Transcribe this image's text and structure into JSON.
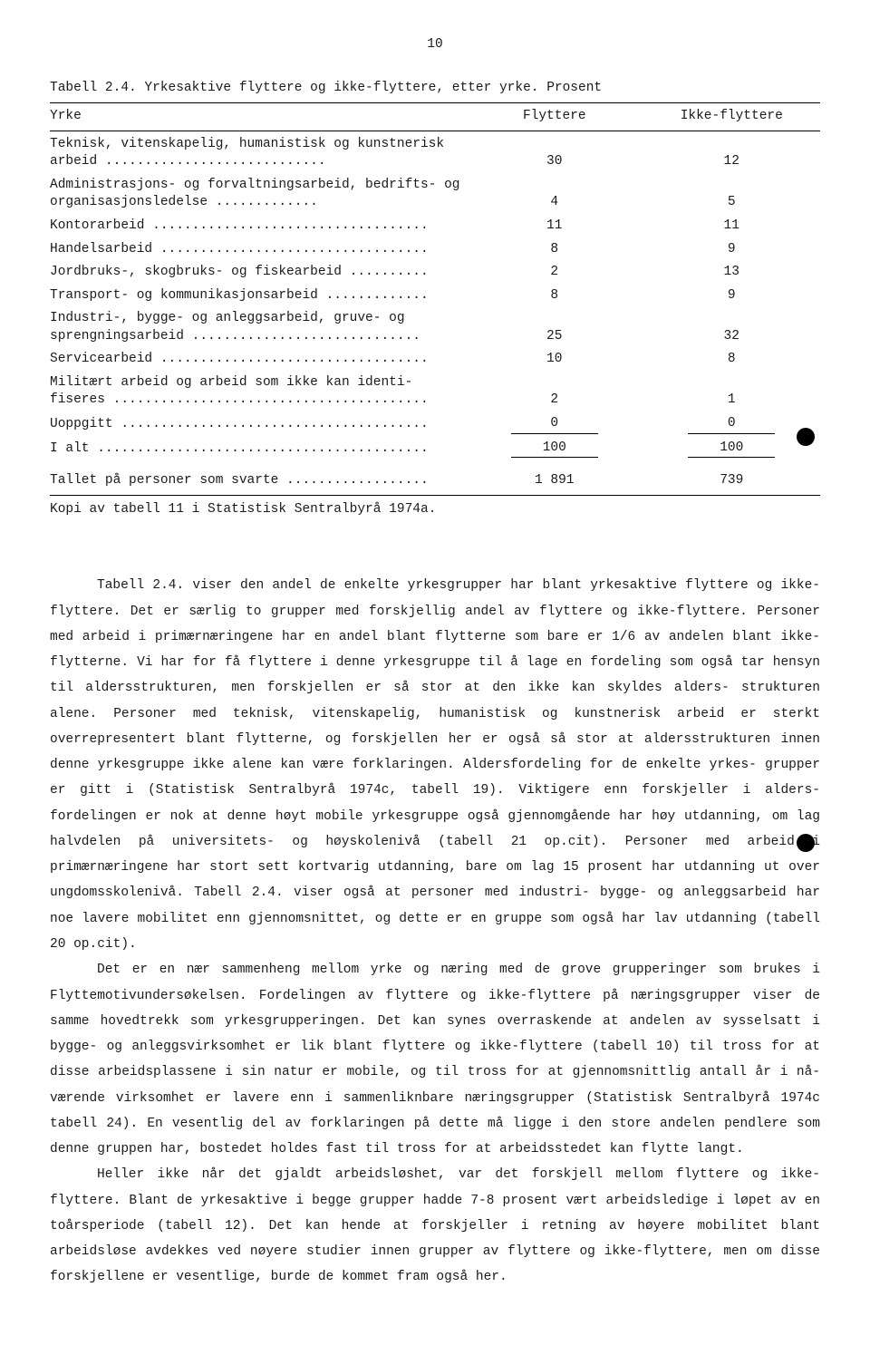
{
  "page_number": "10",
  "table": {
    "title": "Tabell 2.4.  Yrkesaktive flyttere og ikke-flyttere, etter yrke.  Prosent",
    "head_yrke": "Yrke",
    "head_flyttere": "Flyttere",
    "head_ikke": "Ikke-flyttere",
    "rows": [
      {
        "label": "Teknisk, vitenskapelig, humanistisk og kunstnerisk arbeid ............................",
        "f": "30",
        "i": "12"
      },
      {
        "label": "Administrasjons- og forvaltningsarbeid, bedrifts- og organisasjonsledelse .............",
        "f": "4",
        "i": "5"
      },
      {
        "label": "Kontorarbeid ...................................",
        "f": "11",
        "i": "11"
      },
      {
        "label": "Handelsarbeid ..................................",
        "f": "8",
        "i": "9"
      },
      {
        "label": "Jordbruks-, skogbruks- og fiskearbeid ..........",
        "f": "2",
        "i": "13"
      },
      {
        "label": "Transport- og kommunikasjonsarbeid .............",
        "f": "8",
        "i": "9"
      },
      {
        "label": "Industri-, bygge- og anleggsarbeid, gruve- og sprengningsarbeid .............................",
        "f": "25",
        "i": "32"
      },
      {
        "label": "Servicearbeid ..................................",
        "f": "10",
        "i": "8"
      },
      {
        "label": "Militært arbeid og arbeid som ikke kan identi- fiseres ........................................",
        "f": "2",
        "i": "1"
      },
      {
        "label": "Uoppgitt .......................................",
        "f": "0",
        "i": "0"
      }
    ],
    "total_label": "I alt ..........................................",
    "total_f": "100",
    "total_i": "100",
    "count_label": "Tallet på personer som svarte ..................",
    "count_f": "1 891",
    "count_i": "739",
    "footnote": "Kopi av tabell 11 i Statistisk Sentralbyrå 1974a."
  },
  "paragraphs": {
    "p1": "Tabell 2.4. viser den andel de enkelte yrkesgrupper har blant yrkesaktive flyttere og ikke-flyttere.  Det  er særlig to grupper med forskjellig andel av flyttere og ikke-flyttere. Personer med arbeid i primærnæringene har en andel blant flytterne som bare er 1/6 av andelen blant ikke-flytterne.  Vi har for få flyttere i denne yrkesgruppe til å lage en fordeling som også tar hensyn til aldersstrukturen, men forskjellen er så stor at den ikke kan skyldes alders- strukturen alene.  Personer med teknisk, vitenskapelig, humanistisk og kunstnerisk arbeid er sterkt overrepresentert blant flytterne, og forskjellen her er også så stor at aldersstrukturen innen denne yrkesgruppe ikke alene kan være forklaringen.  Aldersfordeling for de enkelte yrkes- grupper er gitt i (Statistisk Sentralbyrå 1974c, tabell 19).  Viktigere enn forskjeller i alders- fordelingen er nok at denne høyt mobile yrkesgruppe også gjennomgående har høy utdanning, om lag halvdelen på universitets- og høyskolenivå (tabell 21 op.cit).  Personer med arbeid i primærnæringene har stort sett kortvarig utdanning, bare om lag 15 prosent har utdanning ut over ungdomsskolenivå.  Tabell 2.4. viser også at personer med industri- bygge- og anleggsarbeid har noe lavere mobilitet enn gjennomsnittet, og dette er en gruppe som også har lav utdanning (tabell 20 op.cit).",
    "p2": "Det er en nær sammenheng mellom yrke og næring med de grove grupperinger som brukes i Flyttemotivundersøkelsen.  Fordelingen av flyttere og ikke-flyttere på næringsgrupper viser de samme hovedtrekk som yrkesgrupperingen.  Det kan synes overraskende at andelen av sysselsatt i bygge- og anleggsvirksomhet er lik blant flyttere og ikke-flyttere (tabell 10) til tross for at disse arbeidsplassene i sin natur er mobile, og til tross for at gjennomsnittlig antall år i nå- værende virksomhet er lavere enn i sammenliknbare næringsgrupper (Statistisk Sentralbyrå 1974c tabell 24).  En vesentlig del av forklaringen på dette må ligge i den store andelen pendlere som denne gruppen har, bostedet holdes fast til tross for at arbeidsstedet kan flytte langt.",
    "p3": "Heller ikke når det gjaldt arbeidsløshet, var det forskjell mellom flyttere og ikke- flyttere.  Blant de yrkesaktive i begge grupper hadde 7-8 prosent vært arbeidsledige i løpet av en toårsperiode (tabell 12).  Det kan hende at forskjeller i retning av høyere mobilitet blant arbeidsløse avdekkes ved nøyere studier innen grupper av flyttere og ikke-flyttere, men om disse forskjellene er vesentlige, burde de kommet fram også her."
  }
}
